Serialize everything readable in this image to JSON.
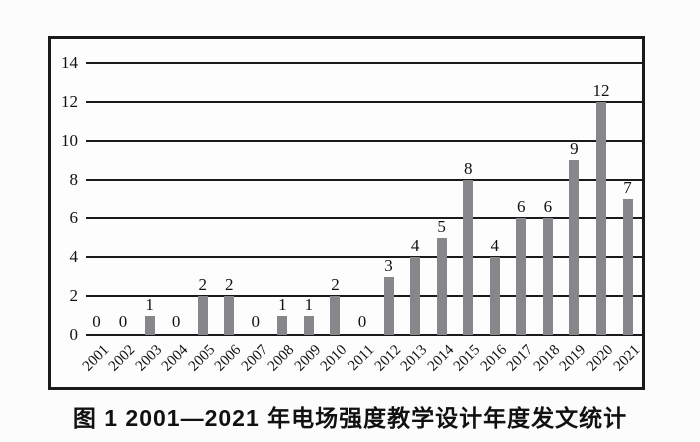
{
  "figure": {
    "caption": "图 1 2001—2021 年电场强度教学设计年度发文统计"
  },
  "chart_data": {
    "type": "bar",
    "categories": [
      "2001",
      "2002",
      "2003",
      "2004",
      "2005",
      "2006",
      "2007",
      "2008",
      "2009",
      "2010",
      "2011",
      "2012",
      "2013",
      "2014",
      "2015",
      "2016",
      "2017",
      "2018",
      "2019",
      "2020",
      "2021"
    ],
    "values": [
      0,
      0,
      1,
      0,
      2,
      2,
      0,
      1,
      1,
      2,
      0,
      3,
      4,
      5,
      8,
      4,
      6,
      6,
      9,
      12,
      7
    ],
    "title": "图 1 2001—2021 年电场强度教学设计年度发文统计",
    "xlabel": "",
    "ylabel": "",
    "ylim": [
      0,
      14
    ],
    "yticks": [
      0,
      2,
      4,
      6,
      8,
      10,
      12,
      14
    ],
    "grid": true,
    "legend": false,
    "value_labels": true,
    "bar_color": "#87878b",
    "grid_color": "#1a1a1a"
  }
}
